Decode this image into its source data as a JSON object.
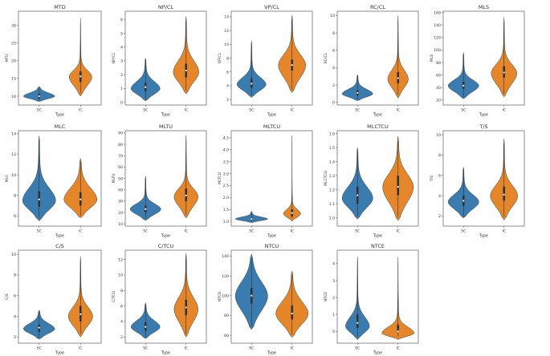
{
  "colors": {
    "SC": "#3a7bb0",
    "IC": "#e6862a",
    "axis": "#444444"
  },
  "chart_data": [
    {
      "type": "violin",
      "title": "MTD",
      "xlabel": "Type",
      "ylabel": "MTD",
      "categories": [
        "SC",
        "IC"
      ],
      "yticks": [
        10,
        15,
        20,
        25,
        30
      ],
      "ylim": [
        7.5,
        34
      ],
      "series": [
        {
          "name": "SC",
          "min": 8.5,
          "q1": 9.4,
          "median": 10,
          "q3": 10.6,
          "max": 12.7,
          "mode": 10,
          "spread": 0.9,
          "width": 0.9
        },
        {
          "name": "IC",
          "min": 10,
          "q1": 14,
          "median": 15.6,
          "q3": 17,
          "max": 32,
          "mode": 15.5,
          "spread": 1.8,
          "width": 0.65
        }
      ]
    },
    {
      "type": "violin",
      "title": "NP/CL",
      "xlabel": "Type",
      "ylabel": "NP/CL",
      "categories": [
        "SC",
        "IC"
      ],
      "yticks": [
        0,
        1,
        2,
        3,
        4,
        5,
        6
      ],
      "ylim": [
        -0.2,
        6.6
      ],
      "series": [
        {
          "name": "SC",
          "min": 0.1,
          "q1": 0.8,
          "median": 1.1,
          "q3": 1.4,
          "max": 3.2,
          "mode": 1.0,
          "spread": 0.5,
          "width": 0.85
        },
        {
          "name": "IC",
          "min": 0.6,
          "q1": 1.8,
          "median": 2.3,
          "q3": 2.8,
          "max": 6.2,
          "mode": 2.2,
          "spread": 0.8,
          "width": 0.75
        }
      ]
    },
    {
      "type": "violin",
      "title": "VP/CL",
      "xlabel": "Type",
      "ylabel": "VP/CL",
      "categories": [
        "SC",
        "IC"
      ],
      "yticks": [
        2,
        4,
        6,
        8,
        10,
        12,
        14
      ],
      "ylim": [
        1.2,
        14.8
      ],
      "series": [
        {
          "name": "SC",
          "min": 2.3,
          "q1": 3.7,
          "median": 4.3,
          "q3": 5.0,
          "max": 10.5,
          "mode": 4.2,
          "spread": 1.0,
          "width": 0.85
        },
        {
          "name": "IC",
          "min": 3.0,
          "q1": 6.2,
          "median": 7.0,
          "q3": 7.8,
          "max": 14.2,
          "mode": 7.0,
          "spread": 1.5,
          "width": 0.8
        }
      ]
    },
    {
      "type": "violin",
      "title": "RC/CL",
      "xlabel": "Type",
      "ylabel": "RC/CL",
      "categories": [
        "SC",
        "IC"
      ],
      "yticks": [
        0,
        2,
        4,
        6,
        8,
        10
      ],
      "ylim": [
        -0.3,
        10.5
      ],
      "series": [
        {
          "name": "SC",
          "min": 0.2,
          "q1": 0.8,
          "median": 1.1,
          "q3": 1.4,
          "max": 3.2,
          "mode": 1.0,
          "spread": 0.5,
          "width": 0.9
        },
        {
          "name": "IC",
          "min": 0.5,
          "q1": 2.2,
          "median": 2.8,
          "q3": 3.5,
          "max": 10,
          "mode": 2.7,
          "spread": 1.0,
          "width": 0.6
        }
      ]
    },
    {
      "type": "violin",
      "title": "MLS",
      "xlabel": "Type",
      "ylabel": "MLS",
      "categories": [
        "SC",
        "IC"
      ],
      "yticks": [
        20,
        40,
        60,
        80,
        100,
        120,
        140,
        160
      ],
      "ylim": [
        12,
        162
      ],
      "series": [
        {
          "name": "SC",
          "min": 22,
          "q1": 38,
          "median": 43,
          "q3": 49,
          "max": 96,
          "mode": 43,
          "spread": 9,
          "width": 0.9
        },
        {
          "name": "IC",
          "min": 25,
          "q1": 56,
          "median": 64,
          "q3": 74,
          "max": 152,
          "mode": 63,
          "spread": 14,
          "width": 0.75
        }
      ]
    },
    {
      "type": "violin",
      "title": "MLC",
      "xlabel": "Type",
      "ylabel": "MLC",
      "categories": [
        "SC",
        "IC"
      ],
      "yticks": [
        6,
        8,
        10,
        12,
        14
      ],
      "ylim": [
        5.0,
        14.3
      ],
      "series": [
        {
          "name": "SC",
          "min": 5.5,
          "q1": 6.9,
          "median": 7.6,
          "q3": 8.4,
          "max": 13.8,
          "mode": 7.5,
          "spread": 1.2,
          "width": 0.95
        },
        {
          "name": "IC",
          "min": 5.8,
          "q1": 7.0,
          "median": 7.6,
          "q3": 8.3,
          "max": 11.6,
          "mode": 7.6,
          "spread": 1.1,
          "width": 0.95
        }
      ]
    },
    {
      "type": "violin",
      "title": "MLTU",
      "xlabel": "Type",
      "ylabel": "MLTU",
      "categories": [
        "SC",
        "IC"
      ],
      "yticks": [
        10,
        20,
        30,
        40,
        50,
        60,
        70,
        80,
        90
      ],
      "ylim": [
        8,
        92
      ],
      "series": [
        {
          "name": "SC",
          "min": 13,
          "q1": 20,
          "median": 23,
          "q3": 26,
          "max": 52,
          "mode": 23,
          "spread": 4.5,
          "width": 0.9
        },
        {
          "name": "IC",
          "min": 15,
          "q1": 30,
          "median": 35,
          "q3": 41,
          "max": 88,
          "mode": 34,
          "spread": 7,
          "width": 0.7
        }
      ]
    },
    {
      "type": "violin",
      "title": "MLTCU",
      "xlabel": "Type",
      "ylabel": "MLTCU",
      "categories": [
        "SC",
        "IC"
      ],
      "yticks": [
        1.0,
        1.5,
        2.0,
        2.5,
        3.0,
        3.5,
        4.0,
        4.5
      ],
      "yticklabels": [
        "1.0",
        "1.5",
        "2.0",
        "2.5",
        "3.0",
        "3.5",
        "4.0",
        "4.5"
      ],
      "ylim": [
        0.8,
        4.8
      ],
      "series": [
        {
          "name": "SC",
          "min": 0.95,
          "q1": 1.05,
          "median": 1.1,
          "q3": 1.15,
          "max": 1.42,
          "mode": 1.1,
          "spread": 0.08,
          "width": 0.95
        },
        {
          "name": "IC",
          "min": 1.0,
          "q1": 1.2,
          "median": 1.35,
          "q3": 1.5,
          "max": 4.6,
          "mode": 1.32,
          "spread": 0.18,
          "width": 0.5
        }
      ]
    },
    {
      "type": "violin",
      "title": "MLCTCU",
      "xlabel": "Type",
      "ylabel": "MLCTCU",
      "categories": [
        "SC",
        "IC"
      ],
      "yticks": [
        1.0,
        1.1,
        1.2,
        1.3,
        1.4,
        1.5,
        1.6
      ],
      "yticklabels": [
        "1.0",
        "1.1",
        "1.2",
        "1.3",
        "1.4",
        "1.5",
        "1.6"
      ],
      "ylim": [
        0.94,
        1.62
      ],
      "series": [
        {
          "name": "SC",
          "min": 0.99,
          "q1": 1.1,
          "median": 1.16,
          "q3": 1.22,
          "max": 1.5,
          "mode": 1.14,
          "spread": 0.08,
          "width": 0.9
        },
        {
          "name": "IC",
          "min": 0.98,
          "q1": 1.16,
          "median": 1.22,
          "q3": 1.3,
          "max": 1.58,
          "mode": 1.22,
          "spread": 0.09,
          "width": 0.9
        }
      ]
    },
    {
      "type": "violin",
      "title": "T/S",
      "xlabel": "Type",
      "ylabel": "T/S",
      "categories": [
        "SC",
        "IC"
      ],
      "yticks": [
        2,
        4,
        6,
        8,
        10
      ],
      "ylim": [
        1.0,
        10.4
      ],
      "series": [
        {
          "name": "SC",
          "min": 1.8,
          "q1": 3.0,
          "median": 3.5,
          "q3": 4.0,
          "max": 6.8,
          "mode": 3.4,
          "spread": 0.7,
          "width": 0.9
        },
        {
          "name": "IC",
          "min": 1.6,
          "q1": 3.5,
          "median": 4.1,
          "q3": 4.9,
          "max": 9.6,
          "mode": 4.0,
          "spread": 1.0,
          "width": 0.8
        }
      ]
    },
    {
      "type": "violin",
      "title": "C/S",
      "xlabel": "Type",
      "ylabel": "C/S",
      "categories": [
        "SC",
        "IC"
      ],
      "yticks": [
        2,
        4,
        6,
        8,
        10
      ],
      "ylim": [
        1.4,
        10.4
      ],
      "series": [
        {
          "name": "SC",
          "min": 1.8,
          "q1": 2.5,
          "median": 2.9,
          "q3": 3.2,
          "max": 4.6,
          "mode": 2.8,
          "spread": 0.5,
          "width": 0.9
        },
        {
          "name": "IC",
          "min": 2.0,
          "q1": 3.5,
          "median": 4.2,
          "q3": 5.0,
          "max": 9.8,
          "mode": 4.0,
          "spread": 0.9,
          "width": 0.7
        }
      ]
    },
    {
      "type": "violin",
      "title": "C/TCU",
      "xlabel": "Type",
      "ylabel": "C/TCU",
      "categories": [
        "SC",
        "IC"
      ],
      "yticks": [
        2,
        4,
        6,
        8,
        10,
        12
      ],
      "ylim": [
        1.2,
        13.2
      ],
      "series": [
        {
          "name": "SC",
          "min": 1.8,
          "q1": 2.8,
          "median": 3.3,
          "q3": 3.9,
          "max": 6.4,
          "mode": 3.3,
          "spread": 0.8,
          "width": 0.85
        },
        {
          "name": "IC",
          "min": 2.0,
          "q1": 4.8,
          "median": 5.8,
          "q3": 6.8,
          "max": 12.8,
          "mode": 5.6,
          "spread": 1.5,
          "width": 0.7
        }
      ]
    },
    {
      "type": "violin",
      "title": "NTCU",
      "xlabel": "Type",
      "ylabel": "NTCU",
      "categories": [
        "SC",
        "IC"
      ],
      "yticks": [
        60,
        80,
        100,
        120,
        140
      ],
      "ylim": [
        52,
        146
      ],
      "series": [
        {
          "name": "SC",
          "min": 66,
          "q1": 92,
          "median": 100,
          "q3": 108,
          "max": 142,
          "mode": 100,
          "spread": 14,
          "width": 0.95
        },
        {
          "name": "IC",
          "min": 58,
          "q1": 76,
          "median": 82,
          "q3": 90,
          "max": 125,
          "mode": 82,
          "spread": 12,
          "width": 0.95
        }
      ]
    },
    {
      "type": "violin",
      "title": "NTCE",
      "xlabel": "Type",
      "ylabel": "NTCE",
      "categories": [
        "SC",
        "IC"
      ],
      "yticks": [
        0,
        1,
        2,
        3,
        4
      ],
      "ylim": [
        -0.7,
        4.8
      ],
      "series": [
        {
          "name": "SC",
          "min": -0.5,
          "q1": 0.2,
          "median": 0.5,
          "q3": 1.0,
          "max": 4.4,
          "mode": 0.3,
          "spread": 0.55,
          "width": 0.7
        },
        {
          "name": "IC",
          "min": -0.5,
          "q1": 0,
          "median": 0,
          "q3": 0.4,
          "max": 4.4,
          "mode": -0.1,
          "spread": 0.35,
          "width": 0.95
        }
      ]
    }
  ]
}
